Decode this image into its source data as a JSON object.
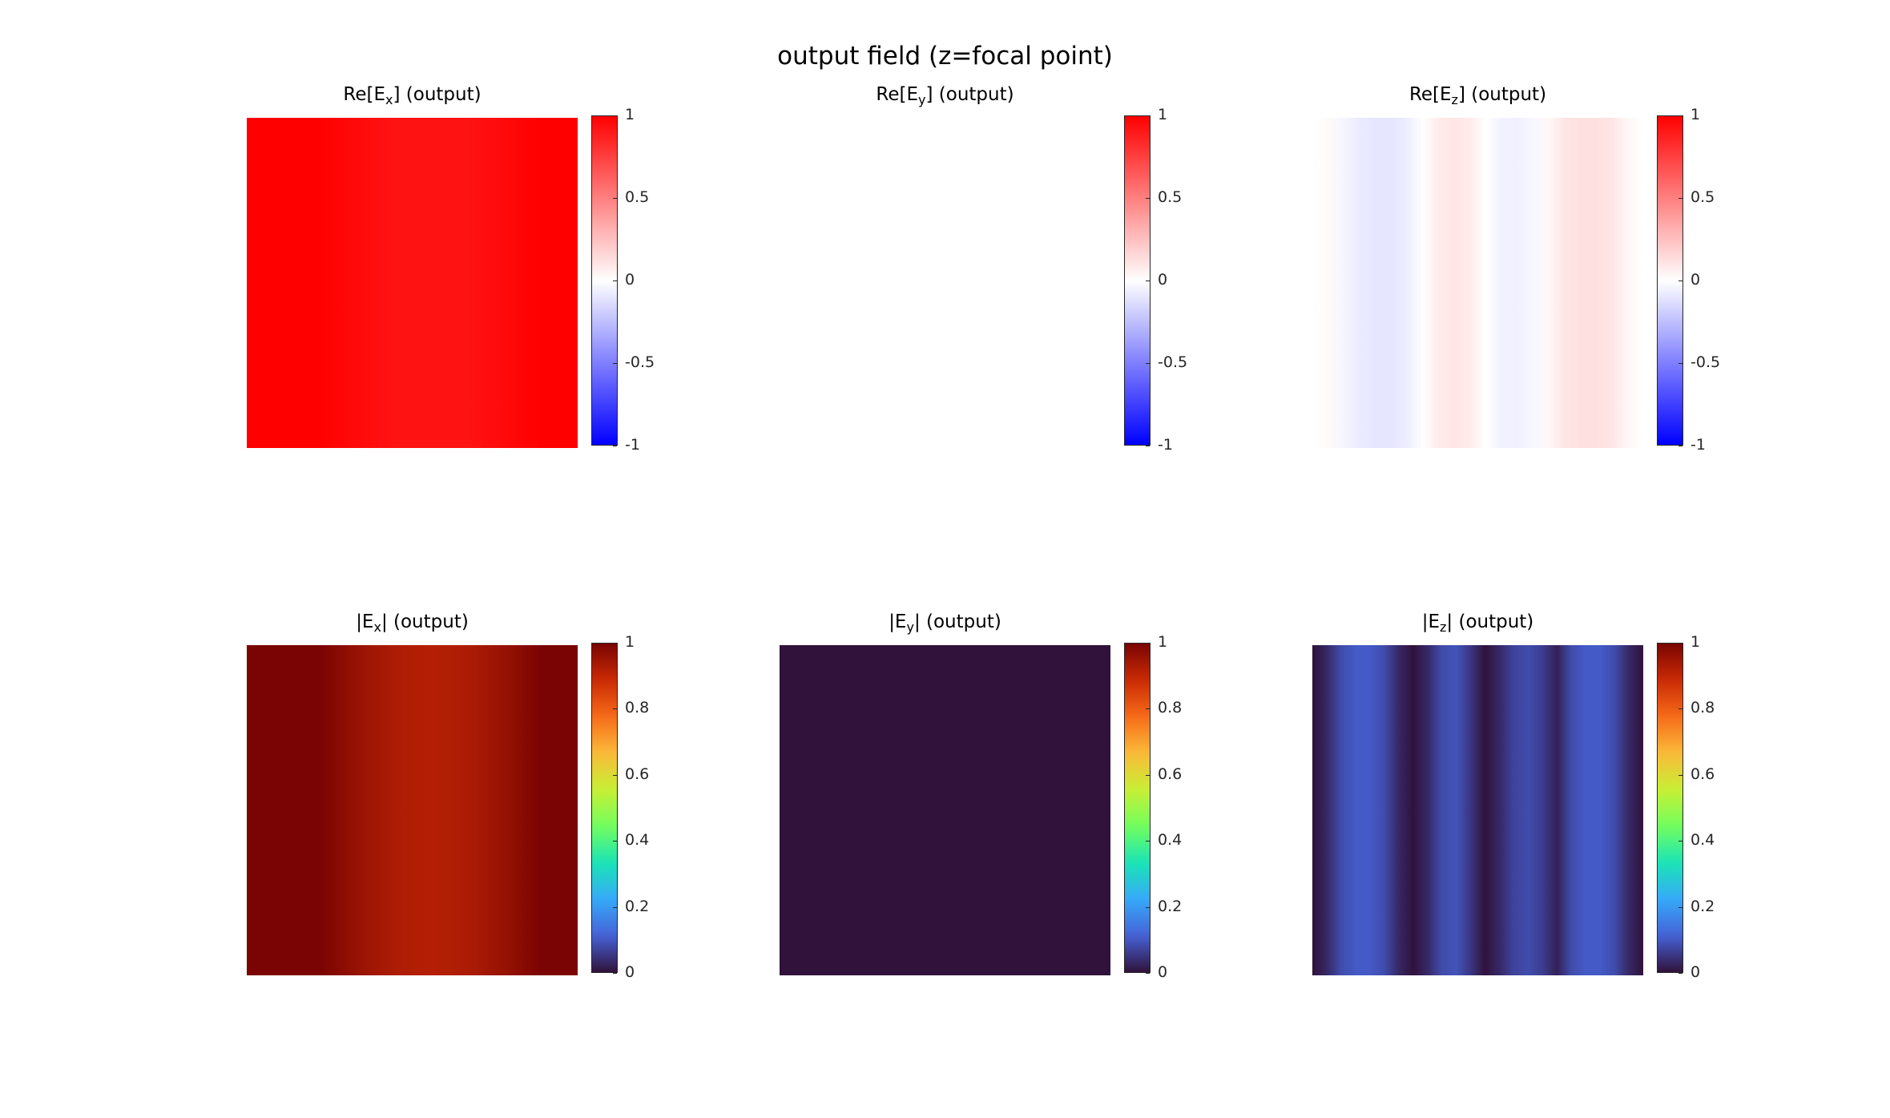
{
  "figure_title": "output field (z=focal point)",
  "colormaps": {
    "diverging": [
      "#0000ff",
      "#ffffff",
      "#ff0000"
    ],
    "turbo": [
      "#30123b",
      "#4662d7",
      "#36aaf9",
      "#1ae4b6",
      "#72fe5e",
      "#c8ef34",
      "#faba39",
      "#f66b19",
      "#ca2a04",
      "#7a0403"
    ]
  },
  "chart_data": [
    {
      "type": "heatmap",
      "title_prefix": "Re[E",
      "title_sub": "x",
      "title_suffix": "] (output)",
      "colormap": "diverging",
      "clim": [
        -1,
        1
      ],
      "colorbar_ticks": [
        "1",
        "0.5",
        "0",
        "-0.5",
        "-1"
      ],
      "tick_values": [
        1,
        0.5,
        0,
        -0.5,
        -1
      ],
      "x_profile": [
        1.0,
        1.0,
        1.0,
        0.96,
        0.93,
        0.93,
        0.93,
        0.96,
        1.0,
        1.0
      ]
    },
    {
      "type": "heatmap",
      "title_prefix": "Re[E",
      "title_sub": "y",
      "title_suffix": "] (output)",
      "colormap": "diverging",
      "clim": [
        -1,
        1
      ],
      "colorbar_ticks": [
        "1",
        "0.5",
        "0",
        "-0.5",
        "-1"
      ],
      "tick_values": [
        1,
        0.5,
        0,
        -0.5,
        -1
      ],
      "x_profile": [
        0,
        0,
        0,
        0,
        0,
        0,
        0,
        0,
        0,
        0
      ]
    },
    {
      "type": "heatmap",
      "title_prefix": "Re[E",
      "title_sub": "z",
      "title_suffix": "] (output)",
      "colormap": "diverging",
      "clim": [
        -1,
        1
      ],
      "colorbar_ticks": [
        "1",
        "0.5",
        "0",
        "-0.5",
        "-1"
      ],
      "tick_values": [
        1,
        0.5,
        0,
        -0.5,
        -1
      ],
      "x_profile": [
        0.0,
        0.02,
        -0.04,
        -0.08,
        -0.1,
        -0.1,
        -0.07,
        0.0,
        0.08,
        0.1,
        0.08,
        0.0,
        -0.05,
        -0.06,
        -0.03,
        0.03,
        0.1,
        0.12,
        0.12,
        0.1,
        0.03,
        0.0
      ]
    },
    {
      "type": "heatmap",
      "title_prefix": "|E",
      "title_sub": "x",
      "title_suffix": "| (output)",
      "colormap": "turbo",
      "clim": [
        0,
        1
      ],
      "colorbar_ticks": [
        "1",
        "0.8",
        "0.6",
        "0.4",
        "0.2",
        "0"
      ],
      "tick_values": [
        1,
        0.8,
        0.6,
        0.4,
        0.2,
        0
      ],
      "x_profile": [
        1.0,
        1.0,
        1.0,
        0.96,
        0.93,
        0.92,
        0.93,
        0.96,
        1.0,
        1.0
      ]
    },
    {
      "type": "heatmap",
      "title_prefix": "|E",
      "title_sub": "y",
      "title_suffix": "| (output)",
      "colormap": "turbo",
      "clim": [
        0,
        1
      ],
      "colorbar_ticks": [
        "1",
        "0.8",
        "0.6",
        "0.4",
        "0.2",
        "0"
      ],
      "tick_values": [
        1,
        0.8,
        0.6,
        0.4,
        0.2,
        0
      ],
      "x_profile": [
        0,
        0,
        0,
        0,
        0,
        0,
        0,
        0,
        0,
        0
      ]
    },
    {
      "type": "heatmap",
      "title_prefix": "|E",
      "title_sub": "z",
      "title_suffix": "| (output)",
      "colormap": "turbo",
      "clim": [
        0,
        1
      ],
      "colorbar_ticks": [
        "1",
        "0.8",
        "0.6",
        "0.4",
        "0.2",
        "0"
      ],
      "tick_values": [
        1,
        0.8,
        0.6,
        0.4,
        0.2,
        0
      ],
      "x_profile": [
        0.0,
        0.03,
        0.08,
        0.1,
        0.1,
        0.08,
        0.03,
        0.0,
        0.03,
        0.08,
        0.09,
        0.05,
        0.0,
        0.03,
        0.07,
        0.08,
        0.06,
        0.02,
        0.08,
        0.1,
        0.1,
        0.08,
        0.03,
        0.0
      ]
    }
  ]
}
